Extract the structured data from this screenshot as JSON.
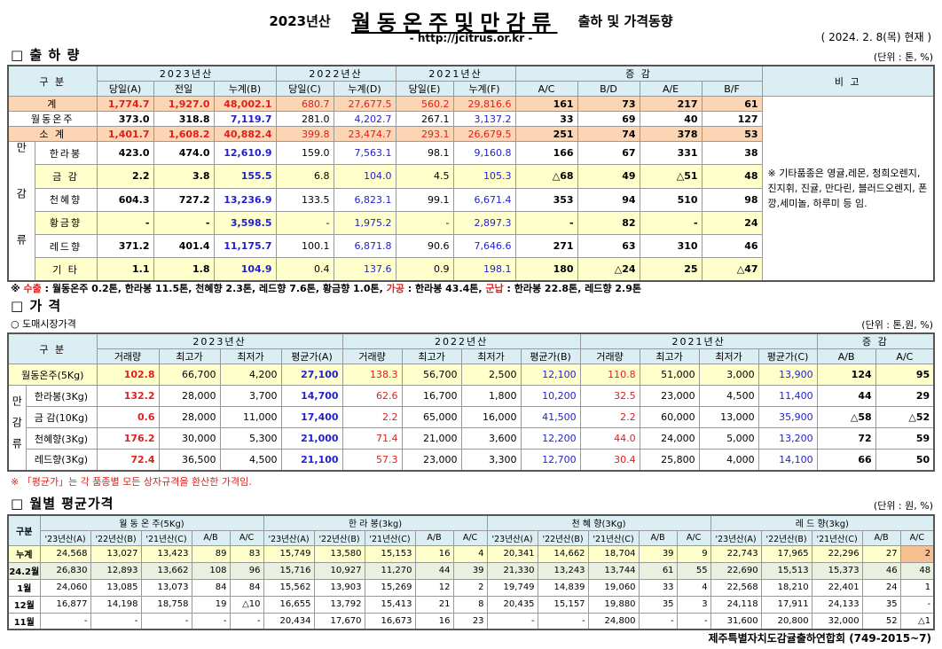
{
  "header": {
    "title_year": "2023년산",
    "title_main": "월동온주및만감류",
    "title_sub": "출하 및 가격동향",
    "url": "- http://jcitrus.or.kr -",
    "date": "( 2024. 2. 8(목) 현재 )"
  },
  "shipment": {
    "section": "□ 출 하 량",
    "unit": "(단위 : 톤, %)",
    "group_headers": [
      "구 분",
      "2023년산",
      "2022년산",
      "2021년산",
      "증 감",
      "비 고"
    ],
    "columns": [
      "당일(A)",
      "전일",
      "누계(B)",
      "당일(C)",
      "누계(D)",
      "당일(E)",
      "누계(F)",
      "A/C",
      "B/D",
      "A/E",
      "B/F"
    ],
    "group_label": "만감류",
    "rows": [
      {
        "label": "계",
        "values": [
          "1,774.7",
          "1,927.0",
          "48,002.1",
          "680.7",
          "27,677.5",
          "560.2",
          "29,816.6",
          "161",
          "73",
          "217",
          "61"
        ]
      },
      {
        "label": "월동온주",
        "values": [
          "373.0",
          "318.8",
          "7,119.7",
          "281.0",
          "4,202.7",
          "267.1",
          "3,137.2",
          "33",
          "69",
          "40",
          "127"
        ]
      },
      {
        "label": "소 계",
        "values": [
          "1,401.7",
          "1,608.2",
          "40,882.4",
          "399.8",
          "23,474.7",
          "293.1",
          "26,679.5",
          "251",
          "74",
          "378",
          "53"
        ]
      },
      {
        "label": "한라봉",
        "values": [
          "423.0",
          "474.0",
          "12,610.9",
          "159.0",
          "7,563.1",
          "98.1",
          "9,160.8",
          "166",
          "67",
          "331",
          "38"
        ]
      },
      {
        "label": "금 감",
        "values": [
          "2.2",
          "3.8",
          "155.5",
          "6.8",
          "104.0",
          "4.5",
          "105.3",
          "△68",
          "49",
          "△51",
          "48"
        ]
      },
      {
        "label": "천혜향",
        "values": [
          "604.3",
          "727.2",
          "13,236.9",
          "133.5",
          "6,823.1",
          "99.1",
          "6,671.4",
          "353",
          "94",
          "510",
          "98"
        ]
      },
      {
        "label": "황금향",
        "values": [
          "-",
          "-",
          "3,598.5",
          "-",
          "1,975.2",
          "-",
          "2,897.3",
          "-",
          "82",
          "-",
          "24"
        ]
      },
      {
        "label": "레드향",
        "values": [
          "371.2",
          "401.4",
          "11,175.7",
          "100.1",
          "6,871.8",
          "90.6",
          "7,646.6",
          "271",
          "63",
          "310",
          "46"
        ]
      },
      {
        "label": "기 타",
        "values": [
          "1.1",
          "1.8",
          "104.9",
          "0.4",
          "137.6",
          "0.9",
          "198.1",
          "180",
          "△24",
          "25",
          "△47"
        ]
      }
    ],
    "remark": "※ 기타품종은 영귤,레몬, 청희오렌지, 진지휘, 진귤, 만다린, 블러드오렌지, 폰깡,세미놀, 하루미 등 임.",
    "note": [
      "※ ",
      "수출",
      " : 월동온주 0.2톤, 한라봉 11.5톤, 천혜향 2.3톤, 레드향 7.6톤, 황금향 1.0톤, ",
      "가공",
      " : 한라봉 43.4톤, ",
      "군납",
      " : 한라봉 22.8톤, 레드향 2.9톤"
    ]
  },
  "price": {
    "section": "□ 가 격",
    "subsection": "○ 도매시장가격",
    "unit": "(단위 : 톤,원, %)",
    "group_headers": [
      "구 분",
      "2023년산",
      "2022년산",
      "2021년산",
      "증 감"
    ],
    "columns": [
      "거래량",
      "최고가",
      "최저가",
      "평균가(A)",
      "거래량",
      "최고가",
      "최저가",
      "평균가(B)",
      "거래량",
      "최고가",
      "최저가",
      "평균가(C)",
      "A/B",
      "A/C"
    ],
    "group_label": "만감류",
    "rows": [
      {
        "label": "월동온주(5Kg)",
        "values": [
          "102.8",
          "66,700",
          "4,200",
          "27,100",
          "138.3",
          "56,700",
          "2,500",
          "12,100",
          "110.8",
          "51,000",
          "3,000",
          "13,900",
          "124",
          "95"
        ]
      },
      {
        "label": "한라봉(3Kg)",
        "values": [
          "132.2",
          "28,000",
          "3,700",
          "14,700",
          "62.6",
          "16,700",
          "1,800",
          "10,200",
          "32.5",
          "23,000",
          "4,500",
          "11,400",
          "44",
          "29"
        ]
      },
      {
        "label": "금 감(10Kg)",
        "values": [
          "0.6",
          "28,000",
          "11,000",
          "17,400",
          "2.2",
          "65,000",
          "16,000",
          "41,500",
          "2.2",
          "60,000",
          "13,000",
          "35,900",
          "△58",
          "△52"
        ]
      },
      {
        "label": "천혜향(3Kg)",
        "values": [
          "176.2",
          "30,000",
          "5,300",
          "21,000",
          "71.4",
          "21,000",
          "3,600",
          "12,200",
          "44.0",
          "24,000",
          "5,000",
          "13,200",
          "72",
          "59"
        ]
      },
      {
        "label": "레드향(3Kg)",
        "values": [
          "72.4",
          "36,500",
          "4,500",
          "21,100",
          "57.3",
          "23,000",
          "3,300",
          "12,700",
          "30.4",
          "25,800",
          "4,000",
          "14,100",
          "66",
          "50"
        ]
      }
    ],
    "note": "※ 「평균가」는 각 품종별 모든 상자규격을 환산한 가격임."
  },
  "monthly": {
    "section": "□ 월별 평균가격",
    "unit": "(단위 : 원, %)",
    "corner": "구분",
    "group_headers": [
      "월 동 온 주(5Kg)",
      "한 라 봉(3kg)",
      "천 혜 향(3Kg)",
      "레 드 향(3kg)"
    ],
    "columns": [
      "'23년산(A)",
      "'22년산(B)",
      "'21년산(C)",
      "A/B",
      "A/C"
    ],
    "rows": [
      {
        "label": "누계",
        "values": [
          "24,568",
          "13,027",
          "13,423",
          "89",
          "83",
          "15,749",
          "13,580",
          "15,153",
          "16",
          "4",
          "20,341",
          "14,662",
          "18,704",
          "39",
          "9",
          "22,743",
          "17,965",
          "22,296",
          "27",
          "2"
        ]
      },
      {
        "label": "24.2월",
        "values": [
          "26,830",
          "12,893",
          "13,662",
          "108",
          "96",
          "15,716",
          "10,927",
          "11,270",
          "44",
          "39",
          "21,330",
          "13,243",
          "13,744",
          "61",
          "55",
          "22,690",
          "15,513",
          "15,373",
          "46",
          "48"
        ]
      },
      {
        "label": "1월",
        "values": [
          "24,060",
          "13,085",
          "13,073",
          "84",
          "84",
          "15,562",
          "13,903",
          "15,269",
          "12",
          "2",
          "19,749",
          "14,839",
          "19,060",
          "33",
          "4",
          "22,568",
          "18,210",
          "22,401",
          "24",
          "1"
        ]
      },
      {
        "label": "12월",
        "values": [
          "16,877",
          "14,198",
          "18,758",
          "19",
          "△10",
          "16,655",
          "13,792",
          "15,413",
          "21",
          "8",
          "20,435",
          "15,157",
          "19,880",
          "35",
          "3",
          "24,118",
          "17,911",
          "24,133",
          "35",
          "-"
        ]
      },
      {
        "label": "11월",
        "values": [
          "-",
          "-",
          "-",
          "-",
          "-",
          "20,434",
          "17,670",
          "16,673",
          "16",
          "23",
          "-",
          "-",
          "24,800",
          "-",
          "-",
          "31,600",
          "20,800",
          "32,000",
          "52",
          "△1"
        ]
      }
    ],
    "footer": "제주특별자치도감귤출하연합회 (749-2015~7)"
  }
}
